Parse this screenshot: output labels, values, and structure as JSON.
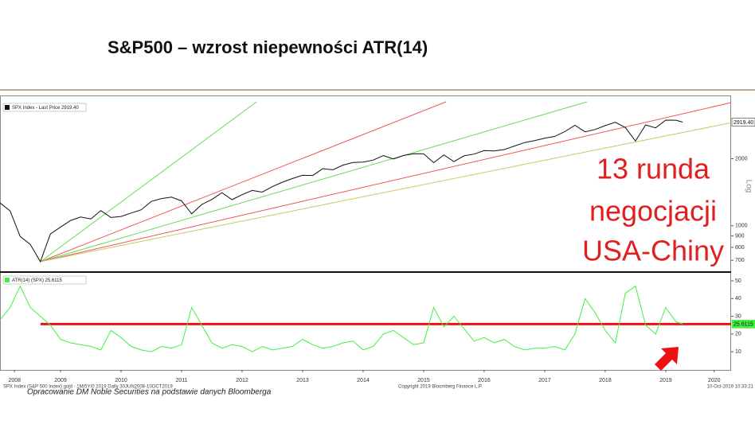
{
  "title": "S&P500 – wzrost niepewności ATR(14)",
  "annotation": [
    "13 runda",
    "negocjacji",
    "USA-Chiny"
  ],
  "footer": {
    "source_line": "SPX Index (S&P 500 Index) gold - 1M/5Y/0 2019 Daily 30JUN2008-10OCT2019",
    "copyright": "Copyright 2019 Bloomberg Finance L.P.",
    "timestamp": "10-Oct-2019 10:33:21",
    "credit": "Opracowanie DM Noble Securities na podstawie danych Bloomberga"
  },
  "chart_data": [
    {
      "type": "line",
      "log_scale": true,
      "y_label": "Log",
      "xlim": [
        2008.5,
        2020.58
      ],
      "ylim": [
        630,
        3600
      ],
      "yticks": [
        700,
        800,
        900,
        1000,
        2000
      ],
      "x": [
        2008.5,
        2008.667,
        2008.833,
        2009,
        2009.167,
        2009.333,
        2009.5,
        2009.667,
        2009.833,
        2010,
        2010.167,
        2010.333,
        2010.5,
        2010.667,
        2010.833,
        2011,
        2011.167,
        2011.333,
        2011.5,
        2011.667,
        2011.833,
        2012,
        2012.167,
        2012.333,
        2012.5,
        2012.667,
        2012.833,
        2013,
        2013.167,
        2013.333,
        2013.5,
        2013.667,
        2013.833,
        2014,
        2014.167,
        2014.333,
        2014.5,
        2014.667,
        2014.833,
        2015,
        2015.167,
        2015.333,
        2015.5,
        2015.667,
        2015.833,
        2016,
        2016.167,
        2016.333,
        2016.5,
        2016.667,
        2016.833,
        2017,
        2017.167,
        2017.333,
        2017.5,
        2017.667,
        2017.833,
        2018,
        2018.167,
        2018.333,
        2018.5,
        2018.667,
        2018.833,
        2019,
        2019.167,
        2019.333,
        2019.5,
        2019.667,
        2019.78
      ],
      "series": [
        {
          "name": "SPX Index - Last Price 2919.40",
          "color": "#111111",
          "last_value_label": "2919.40",
          "values": [
            1267,
            1166,
            896,
            825,
            690,
            919,
            987,
            1057,
            1095,
            1073,
            1169,
            1089,
            1101,
            1141,
            1180,
            1286,
            1325,
            1345,
            1292,
            1131,
            1246,
            1312,
            1408,
            1310,
            1379,
            1440,
            1416,
            1498,
            1569,
            1630,
            1685,
            1681,
            1805,
            1782,
            1872,
            1923,
            1930,
            1972,
            2067,
            1994,
            2067,
            2107,
            2103,
            1920,
            2080,
            1940,
            2060,
            2097,
            2174,
            2168,
            2199,
            2279,
            2363,
            2412,
            2470,
            2519,
            2648,
            2824,
            2641,
            2705,
            2816,
            2914,
            2760,
            2400,
            2834,
            2752,
            2980,
            2977,
            2919.4
          ]
        }
      ],
      "trend_lines": [
        {
          "color": "#66dd55",
          "x": [
            2009.17,
            2012.74
          ],
          "values": [
            690,
            3600
          ]
        },
        {
          "color": "#ee5555",
          "x": [
            2009.17,
            2015.87
          ],
          "values": [
            690,
            3600
          ]
        },
        {
          "color": "#66dd55",
          "x": [
            2009.17,
            2018.2
          ],
          "values": [
            690,
            3600
          ]
        },
        {
          "color": "#ee5555",
          "x": [
            2009.17,
            2020.58
          ],
          "values": [
            690,
            3570
          ]
        },
        {
          "color": "#c8c860",
          "x": [
            2009.17,
            2020.58
          ],
          "values": [
            690,
            2900
          ]
        }
      ]
    },
    {
      "type": "line",
      "xlim": [
        2008.5,
        2020.58
      ],
      "ylim": [
        2,
        53.6
      ],
      "yticks": [
        10,
        20,
        30,
        40,
        50
      ],
      "xticks": [
        {
          "value": 2008.74,
          "label": "2008"
        },
        {
          "value": 2009.5,
          "label": "2009"
        },
        {
          "value": 2010.5,
          "label": "2010"
        },
        {
          "value": 2011.5,
          "label": "2011"
        },
        {
          "value": 2012.5,
          "label": "2012"
        },
        {
          "value": 2013.5,
          "label": "2013"
        },
        {
          "value": 2014.5,
          "label": "2014"
        },
        {
          "value": 2015.5,
          "label": "2015"
        },
        {
          "value": 2016.5,
          "label": "2016"
        },
        {
          "value": 2017.5,
          "label": "2017"
        },
        {
          "value": 2018.5,
          "label": "2018"
        },
        {
          "value": 2019.5,
          "label": "2019"
        },
        {
          "value": 2020.3,
          "label": "2020"
        }
      ],
      "x": [
        2008.5,
        2008.667,
        2008.833,
        2009,
        2009.167,
        2009.333,
        2009.5,
        2009.667,
        2009.833,
        2010,
        2010.167,
        2010.333,
        2010.5,
        2010.667,
        2010.833,
        2011,
        2011.167,
        2011.333,
        2011.5,
        2011.667,
        2011.833,
        2012,
        2012.167,
        2012.333,
        2012.5,
        2012.667,
        2012.833,
        2013,
        2013.167,
        2013.333,
        2013.5,
        2013.667,
        2013.833,
        2014,
        2014.167,
        2014.333,
        2014.5,
        2014.667,
        2014.833,
        2015,
        2015.167,
        2015.333,
        2015.5,
        2015.667,
        2015.833,
        2016,
        2016.167,
        2016.333,
        2016.5,
        2016.667,
        2016.833,
        2017,
        2017.167,
        2017.333,
        2017.5,
        2017.667,
        2017.833,
        2018,
        2018.167,
        2018.333,
        2018.5,
        2018.667,
        2018.833,
        2019,
        2019.167,
        2019.333,
        2019.5,
        2019.667,
        2019.78
      ],
      "series": [
        {
          "name": "ATR(14) (SPX) 25.6115",
          "color": "#44ee44",
          "last_value_label": "25.6115",
          "values": [
            28,
            35,
            47,
            35,
            30,
            25,
            17,
            15,
            14,
            13,
            11,
            22,
            18,
            13,
            11,
            10,
            13,
            12,
            14,
            35,
            25,
            15,
            12,
            14,
            13,
            10,
            13,
            11,
            12,
            13,
            17,
            14,
            12,
            13,
            15,
            16,
            11,
            13,
            20,
            22,
            18,
            14,
            15,
            35,
            24,
            30,
            23,
            16,
            18,
            15,
            17,
            13,
            11,
            12,
            12,
            13,
            11,
            20,
            40,
            32,
            22,
            15,
            43,
            47,
            25,
            20,
            35,
            27,
            25.6115
          ]
        }
      ],
      "reference_line": {
        "color": "#ee1111",
        "value": 25.6115,
        "x": [
          2009.17,
          2020.58
        ]
      }
    }
  ]
}
